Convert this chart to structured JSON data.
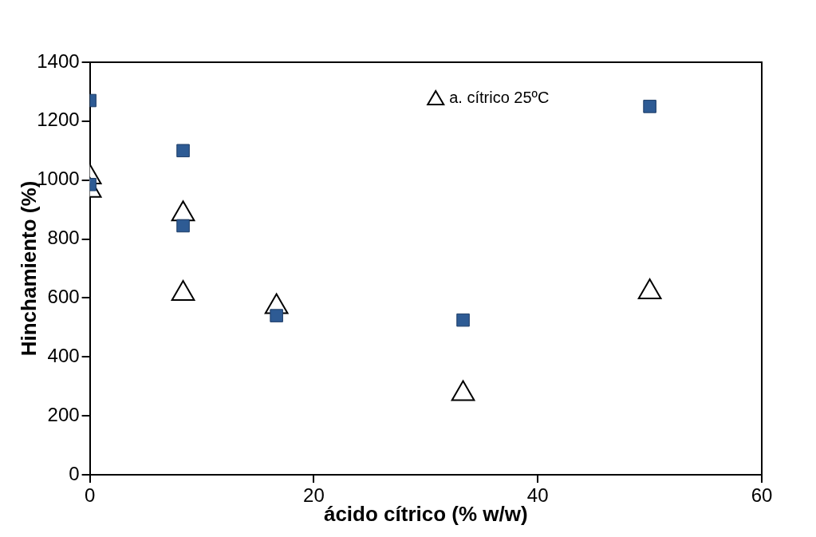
{
  "chart_data": {
    "type": "scatter",
    "xlabel": "ácido cítrico (% w/w)",
    "ylabel": "Hinchamiento (%)",
    "xlim": [
      0,
      60
    ],
    "xticks": [
      0,
      20,
      40,
      60
    ],
    "ylim": [
      0,
      1400
    ],
    "yticks": [
      0,
      200,
      400,
      600,
      800,
      1000,
      1200,
      1400
    ],
    "grid": false,
    "legend": "top",
    "series": [
      {
        "color": "#2e5b94",
        "marker": "square",
        "x": [
          0,
          0,
          8.33,
          8.33,
          16.67,
          33.33,
          50
        ],
        "values": [
          1270,
          985,
          1100,
          845,
          540,
          525,
          1250
        ]
      },
      {
        "name": "a. cítrico 25ºC",
        "color": "#000000",
        "marker": "triangle",
        "x": [
          0,
          0,
          8.33,
          8.33,
          16.67,
          33.33,
          50
        ],
        "values": [
          1010,
          965,
          885,
          615,
          570,
          275,
          620
        ]
      }
    ]
  }
}
